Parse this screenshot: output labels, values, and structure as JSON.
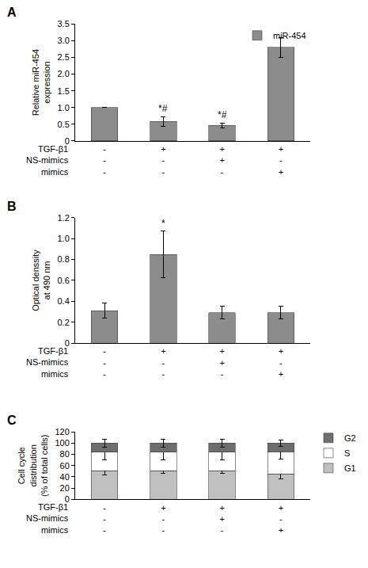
{
  "chart_data": [
    {
      "type": "bar",
      "title": "A",
      "y_label": "Relative miR-454\nexpression",
      "row_labels": [
        "TGF-β1",
        "NS-mimics",
        "mimics"
      ],
      "categories": [
        [
          "-",
          "-",
          "-"
        ],
        [
          "+",
          "-",
          "-"
        ],
        [
          "+",
          "+",
          "-"
        ],
        [
          "+",
          "-",
          "+"
        ]
      ],
      "series": [
        {
          "name": "miR-454",
          "color": "#8c8c8c",
          "values": [
            1.0,
            0.58,
            0.47,
            2.8
          ],
          "errors": [
            0,
            0.15,
            0.07,
            0.3
          ]
        }
      ],
      "annotations": [
        {
          "text": "*#",
          "index": 1
        },
        {
          "text": "*#",
          "index": 2
        }
      ],
      "ylim": [
        0,
        3.5
      ],
      "yticks": [
        0,
        0.5,
        {
          "value": 1,
          "label": "1.0"
        },
        1.5,
        {
          "value": 2,
          "label": "2.0"
        },
        2.5,
        {
          "value": 3,
          "label": "3.0"
        },
        3.5
      ],
      "legend": "top right",
      "grid": false
    },
    {
      "type": "bar",
      "title": "B",
      "y_label": "Optical denssity\nat 490 nm",
      "row_labels": [
        "TGF-β1",
        "NS-mimics",
        "mimics"
      ],
      "categories": [
        [
          "-",
          "-",
          "-"
        ],
        [
          "+",
          "-",
          "-"
        ],
        [
          "+",
          "+",
          "-"
        ],
        [
          "+",
          "-",
          "+"
        ]
      ],
      "series": [
        {
          "color": "#8c8c8c",
          "values": [
            0.31,
            0.85,
            0.29,
            0.29
          ],
          "errors": [
            0.07,
            0.22,
            0.06,
            0.06
          ]
        }
      ],
      "annotations": [
        {
          "text": "*",
          "index": 1
        }
      ],
      "ylim": [
        0,
        1.2
      ],
      "yticks": [
        0,
        0.2,
        0.4,
        0.6,
        0.8,
        {
          "value": 1,
          "label": "1.0"
        },
        1.2
      ],
      "grid": false
    },
    {
      "type": "bar",
      "title": "C",
      "y_label": "Cell cycle\ndistribution\n(% of total cells)",
      "row_labels": [
        "TGF-β1",
        "NS-mimics",
        "mimics"
      ],
      "categories": [
        [
          "-",
          "-",
          "-"
        ],
        [
          "+",
          "-",
          "-"
        ],
        [
          "+",
          "+",
          "-"
        ],
        [
          "+",
          "-",
          "+"
        ]
      ],
      "stacked": true,
      "series": [
        {
          "name": "G1",
          "color": "#c0c0c0",
          "values": [
            51,
            51,
            51,
            45
          ],
          "errors": [
            7,
            5,
            4,
            8
          ]
        },
        {
          "name": "S",
          "color": "#ffffff",
          "values": [
            33,
            33,
            33,
            40
          ],
          "errors": [
            14,
            14,
            14,
            13
          ]
        },
        {
          "name": "G2",
          "color": "#6e6e6e",
          "values": [
            16,
            16,
            16,
            15
          ],
          "errors": [
            7,
            7,
            7,
            5
          ]
        }
      ],
      "ylim": [
        0,
        120
      ],
      "yticks": [
        0,
        20,
        40,
        60,
        80,
        100,
        120
      ],
      "legend": "right",
      "grid": false
    }
  ]
}
